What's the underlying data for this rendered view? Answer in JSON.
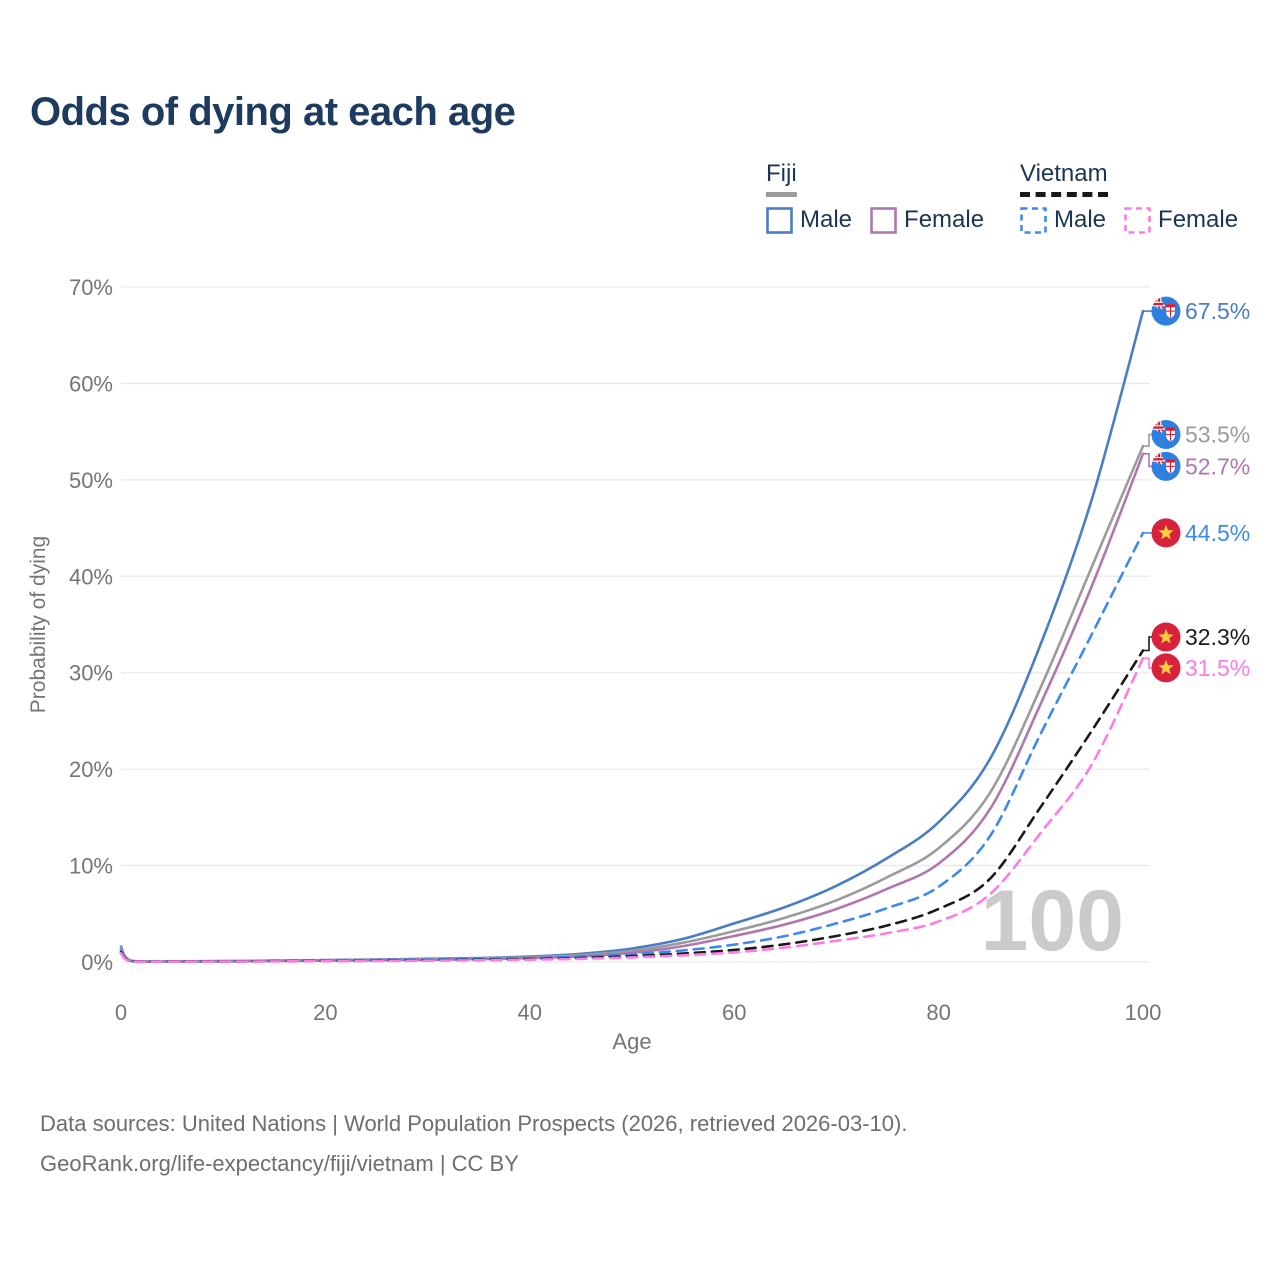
{
  "title": "Odds of dying at each age",
  "legend": {
    "fiji": {
      "label": "Fiji",
      "male": "Male",
      "female": "Female"
    },
    "vietnam": {
      "label": "Vietnam",
      "male": "Male",
      "female": "Female"
    }
  },
  "palette": {
    "title_text": "#1c3b5e",
    "legend_text": "#1c3554",
    "axis_text": "#757575",
    "gridline": "#e9e9e9",
    "watermark_text": "#cbcbcb",
    "footer_text": "#6e6e6e",
    "fiji_flag_blue": "#2e80e0",
    "flag_red": "#d8213c",
    "star_yellow": "#ffce3e"
  },
  "watermark": "100",
  "footer": {
    "line1": "Data sources: United Nations | World Population Prospects (2026, retrieved 2026-03-10).",
    "line2": "GeoRank.org/life-expectancy/fiji/vietnam | CC BY"
  },
  "chart_data": {
    "type": "line",
    "title": "Odds of dying at each age",
    "xlabel": "Age",
    "ylabel": "Probability of dying",
    "xlim": [
      0,
      100
    ],
    "ylim": [
      0,
      70
    ],
    "x_ticks": [
      0,
      20,
      40,
      60,
      80,
      100
    ],
    "y_ticks": [
      0,
      10,
      20,
      30,
      40,
      50,
      60,
      70
    ],
    "y_tick_suffix": "%",
    "grid": "horizontal",
    "legend_position": "top-right",
    "hover_age": "100",
    "series": [
      {
        "id": "fiji-male",
        "name": "Fiji Male",
        "country": "Fiji",
        "sex": "Male",
        "style": "solid",
        "color": "#4a7dc4",
        "flag": "fiji",
        "end_label": "67.5%",
        "end_value": 67.5,
        "label_pct": 67.5,
        "points": [
          [
            0,
            1.6
          ],
          [
            1,
            0.12
          ],
          [
            5,
            0.07
          ],
          [
            10,
            0.09
          ],
          [
            15,
            0.14
          ],
          [
            20,
            0.2
          ],
          [
            25,
            0.26
          ],
          [
            30,
            0.33
          ],
          [
            35,
            0.42
          ],
          [
            40,
            0.56
          ],
          [
            45,
            0.85
          ],
          [
            50,
            1.4
          ],
          [
            55,
            2.4
          ],
          [
            60,
            4.0
          ],
          [
            65,
            5.7
          ],
          [
            70,
            7.9
          ],
          [
            75,
            10.8
          ],
          [
            80,
            14.5
          ],
          [
            85,
            21.0
          ],
          [
            90,
            33.0
          ],
          [
            95,
            48.0
          ],
          [
            100,
            67.5
          ]
        ]
      },
      {
        "id": "fiji-total",
        "name": "Fiji (both sexes)",
        "country": "Fiji",
        "sex": "Both",
        "style": "solid",
        "color": "#9b9b9b",
        "flag": "fiji",
        "end_label": "53.5%",
        "end_value": 53.5,
        "label_pct": 54.7,
        "points": [
          [
            0,
            1.45
          ],
          [
            1,
            0.1
          ],
          [
            5,
            0.06
          ],
          [
            10,
            0.08
          ],
          [
            15,
            0.12
          ],
          [
            20,
            0.17
          ],
          [
            25,
            0.22
          ],
          [
            30,
            0.28
          ],
          [
            35,
            0.36
          ],
          [
            40,
            0.48
          ],
          [
            45,
            0.72
          ],
          [
            50,
            1.15
          ],
          [
            55,
            2.0
          ],
          [
            60,
            3.2
          ],
          [
            65,
            4.6
          ],
          [
            70,
            6.4
          ],
          [
            75,
            8.8
          ],
          [
            80,
            11.8
          ],
          [
            85,
            17.5
          ],
          [
            90,
            28.5
          ],
          [
            95,
            41.0
          ],
          [
            100,
            53.5
          ]
        ]
      },
      {
        "id": "fiji-female",
        "name": "Fiji Female",
        "country": "Fiji",
        "sex": "Female",
        "style": "solid",
        "color": "#b077ae",
        "flag": "fiji",
        "end_label": "52.7%",
        "end_value": 52.7,
        "label_pct": 51.4,
        "points": [
          [
            0,
            1.3
          ],
          [
            1,
            0.09
          ],
          [
            5,
            0.05
          ],
          [
            10,
            0.07
          ],
          [
            15,
            0.1
          ],
          [
            20,
            0.14
          ],
          [
            25,
            0.18
          ],
          [
            30,
            0.23
          ],
          [
            35,
            0.3
          ],
          [
            40,
            0.4
          ],
          [
            45,
            0.6
          ],
          [
            50,
            0.95
          ],
          [
            55,
            1.65
          ],
          [
            60,
            2.7
          ],
          [
            65,
            3.9
          ],
          [
            70,
            5.5
          ],
          [
            75,
            7.6
          ],
          [
            80,
            10.2
          ],
          [
            85,
            15.8
          ],
          [
            90,
            26.8
          ],
          [
            95,
            39.0
          ],
          [
            100,
            52.7
          ]
        ]
      },
      {
        "id": "vietnam-male",
        "name": "Vietnam Male",
        "country": "Vietnam",
        "sex": "Male",
        "style": "dashed",
        "color": "#3f8ae8",
        "flag": "vietnam",
        "end_label": "44.5%",
        "end_value": 44.5,
        "label_pct": 44.5,
        "points": [
          [
            0,
            1.15
          ],
          [
            1,
            0.08
          ],
          [
            5,
            0.05
          ],
          [
            10,
            0.06
          ],
          [
            15,
            0.1
          ],
          [
            20,
            0.15
          ],
          [
            25,
            0.2
          ],
          [
            30,
            0.25
          ],
          [
            35,
            0.31
          ],
          [
            40,
            0.4
          ],
          [
            45,
            0.55
          ],
          [
            50,
            0.8
          ],
          [
            55,
            1.2
          ],
          [
            60,
            1.8
          ],
          [
            65,
            2.7
          ],
          [
            70,
            4.0
          ],
          [
            75,
            5.6
          ],
          [
            80,
            7.8
          ],
          [
            85,
            13.0
          ],
          [
            90,
            23.7
          ],
          [
            95,
            34.0
          ],
          [
            100,
            44.5
          ]
        ]
      },
      {
        "id": "vietnam-total",
        "name": "Vietnam (both sexes)",
        "country": "Vietnam",
        "sex": "Both",
        "style": "dashed",
        "color": "#1a1a1a",
        "flag": "vietnam",
        "end_label": "32.3%",
        "end_value": 32.3,
        "label_pct": 33.7,
        "points": [
          [
            0,
            1.0
          ],
          [
            1,
            0.07
          ],
          [
            5,
            0.04
          ],
          [
            10,
            0.05
          ],
          [
            15,
            0.08
          ],
          [
            20,
            0.11
          ],
          [
            25,
            0.14
          ],
          [
            30,
            0.18
          ],
          [
            35,
            0.23
          ],
          [
            40,
            0.3
          ],
          [
            45,
            0.42
          ],
          [
            50,
            0.6
          ],
          [
            55,
            0.88
          ],
          [
            60,
            1.25
          ],
          [
            65,
            1.85
          ],
          [
            70,
            2.7
          ],
          [
            75,
            3.8
          ],
          [
            80,
            5.5
          ],
          [
            85,
            8.6
          ],
          [
            90,
            16.1
          ],
          [
            95,
            24.0
          ],
          [
            100,
            32.3
          ]
        ]
      },
      {
        "id": "vietnam-female",
        "name": "Vietnam Female",
        "country": "Vietnam",
        "sex": "Female",
        "style": "dashed",
        "color": "#fb7ce4",
        "flag": "vietnam",
        "end_label": "31.5%",
        "end_value": 31.5,
        "label_pct": 30.5,
        "points": [
          [
            0,
            0.9
          ],
          [
            1,
            0.05
          ],
          [
            5,
            0.03
          ],
          [
            10,
            0.04
          ],
          [
            15,
            0.06
          ],
          [
            20,
            0.09
          ],
          [
            25,
            0.11
          ],
          [
            30,
            0.14
          ],
          [
            35,
            0.18
          ],
          [
            40,
            0.24
          ],
          [
            45,
            0.33
          ],
          [
            50,
            0.48
          ],
          [
            55,
            0.7
          ],
          [
            60,
            1.0
          ],
          [
            65,
            1.5
          ],
          [
            70,
            2.2
          ],
          [
            75,
            3.0
          ],
          [
            80,
            4.2
          ],
          [
            85,
            7.0
          ],
          [
            90,
            13.4
          ],
          [
            95,
            20.5
          ],
          [
            100,
            31.5
          ]
        ]
      }
    ]
  }
}
